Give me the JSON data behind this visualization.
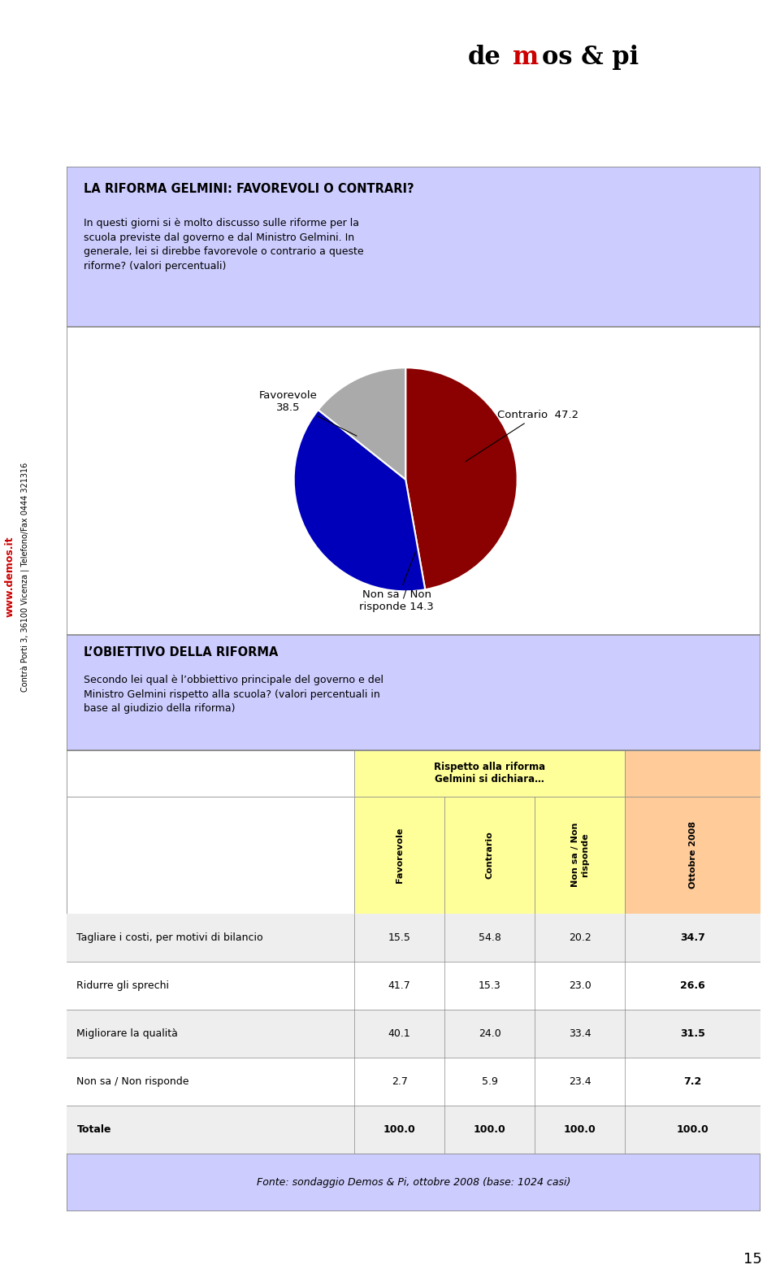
{
  "page_bg": "#ffffff",
  "left_margin_text": "Contrà Porti 3, 36100 Vicenza | Telefono/Fax 0444 321316",
  "side_text": "www.demos.it",
  "page_num": "15",
  "section1_bg": "#ccccff",
  "section1_title": "LA RIFORMA GELMINI: FAVOREVOLI O CONTRARI?",
  "section1_body": "In questi giorni si è molto discusso sulle riforme per la\nscuola previste dal governo e dal Ministro Gelmini. In\ngenerale, lei si direbbe favorevole o contrario a queste\nriforme? (valori percentuali)",
  "pie_values": [
    38.5,
    47.2,
    14.3
  ],
  "pie_colors": [
    "#0000bb",
    "#8b0000",
    "#aaaaaa"
  ],
  "section2_bg": "#ccccff",
  "section2_title": "L’OBIETTIVO DELLA RIFORMA",
  "section2_body": "Secondo lei qual è l’obbiettivo principale del governo e del\nMinistro Gelmini rispetto alla scuola? (valori percentuali in\nbase al giudizio della riforma)",
  "table_header_bg1": "#ffff99",
  "table_header_bg2": "#ffcc99",
  "table_header_text": "Rispetto alla riforma\nGelmini si dichiara…",
  "col_headers": [
    "Favorevole",
    "Contrario",
    "Non sa / Non\nrisponde",
    "Ottobre 2008"
  ],
  "col_header_bgs": [
    "#ffff99",
    "#ffff99",
    "#ffff99",
    "#ffcc99"
  ],
  "rows": [
    {
      "label": "Tagliare i costi, per motivi di bilancio",
      "values": [
        15.5,
        54.8,
        20.2,
        34.7
      ]
    },
    {
      "label": "Ridurre gli sprechi",
      "values": [
        41.7,
        15.3,
        23.0,
        26.6
      ]
    },
    {
      "label": "Migliorare la qualità",
      "values": [
        40.1,
        24.0,
        33.4,
        31.5
      ]
    },
    {
      "label": "Non sa / Non risponde",
      "values": [
        2.7,
        5.9,
        23.4,
        7.2
      ]
    },
    {
      "label": "Totale",
      "values": [
        100.0,
        100.0,
        100.0,
        100.0
      ]
    }
  ],
  "row_bg_alt": [
    "#eeeeee",
    "#ffffff",
    "#eeeeee",
    "#ffffff",
    "#eeeeee"
  ],
  "footer_bg": "#ccccff",
  "footer_text": "Fonte: sondaggio Demos & Pi, ottobre 2008 (base: 1024 casi)"
}
